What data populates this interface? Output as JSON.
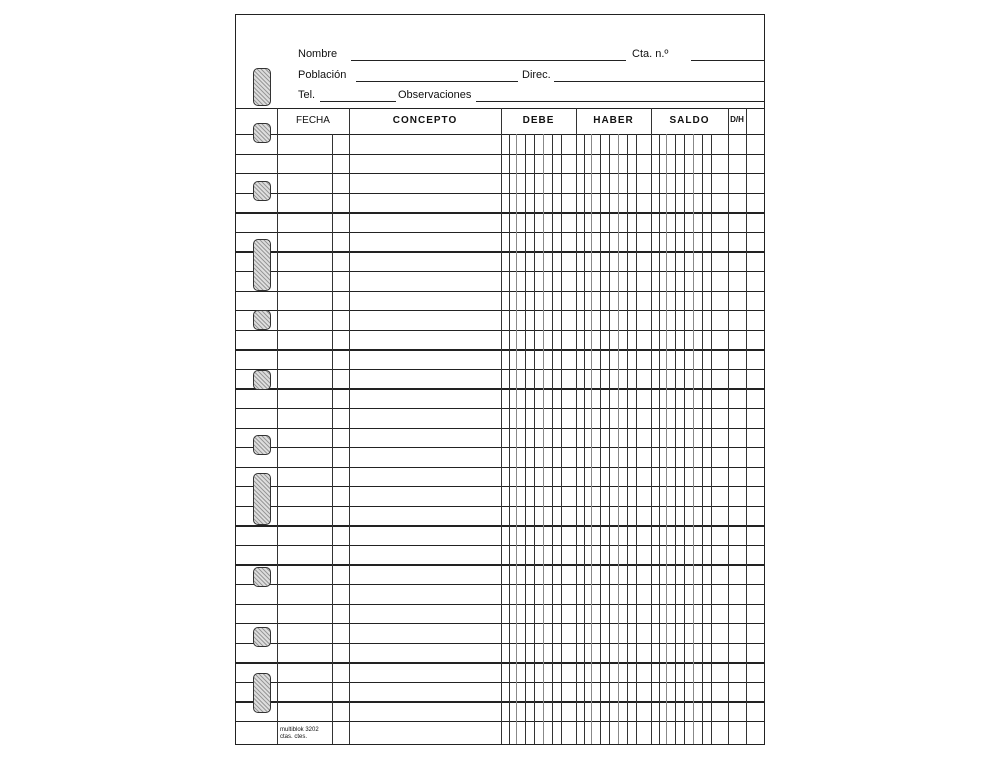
{
  "header": {
    "nombre": "Nombre",
    "cta": "Cta. n.º",
    "poblacion": "Población",
    "direc": "Direc.",
    "tel": "Tel.",
    "observaciones": "Observaciones"
  },
  "columns": {
    "fecha": "FECHA",
    "concepto": "CONCEPTO",
    "debe": "DEBE",
    "haber": "HABER",
    "saldo": "SALDO",
    "dh": "D/H"
  },
  "footer": {
    "line1": "multiblok 3202",
    "line2": "ctas. ctes."
  },
  "rows": 30
}
